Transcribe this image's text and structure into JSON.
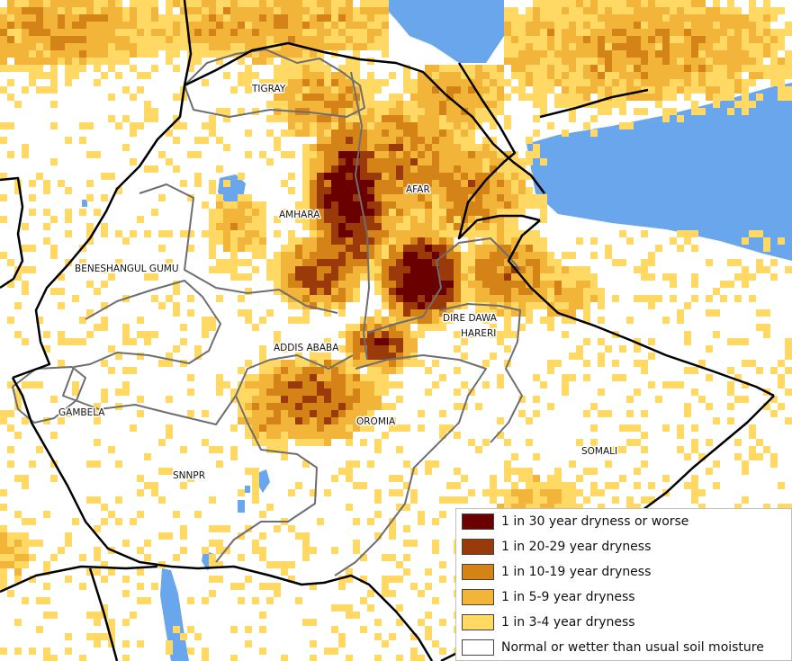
{
  "map": {
    "colors": {
      "sea": "#6aa6ec",
      "land": "#ffffff",
      "country_border": "#000000",
      "region_border": "#6e6e6e",
      "class_1": "#6b0000",
      "class_2": "#9a3a0a",
      "class_3": "#d48417",
      "class_4": "#f2b53a",
      "class_5": "#ffd964"
    },
    "regions": [
      {
        "id": "tigray",
        "label": "TIGRAY"
      },
      {
        "id": "afar",
        "label": "AFAR"
      },
      {
        "id": "amhara",
        "label": "AMHARA"
      },
      {
        "id": "beneshangul",
        "label": "BENESHANGUL GUMU"
      },
      {
        "id": "dire-dawa",
        "label": "DIRE DAWA"
      },
      {
        "id": "hareri",
        "label": "HARERI"
      },
      {
        "id": "addis-ababa",
        "label": "ADDIS ABABA"
      },
      {
        "id": "gambela",
        "label": "GAMBELA"
      },
      {
        "id": "oromia",
        "label": "OROMIA"
      },
      {
        "id": "somali",
        "label": "SOMALI"
      },
      {
        "id": "snnpr",
        "label": "SNNPR"
      }
    ]
  },
  "legend": {
    "items": [
      {
        "label": "1 in 30 year dryness or worse",
        "color": "#6b0000"
      },
      {
        "label": "1 in 20-29 year dryness",
        "color": "#9a3a0a"
      },
      {
        "label": "1 in 10-19 year dryness",
        "color": "#d48417"
      },
      {
        "label": "1 in 5-9 year dryness",
        "color": "#f2b53a"
      },
      {
        "label": "1 in 3-4 year dryness",
        "color": "#ffd964"
      },
      {
        "label": "Normal or wetter than usual soil moisture",
        "color": "#ffffff"
      }
    ]
  }
}
